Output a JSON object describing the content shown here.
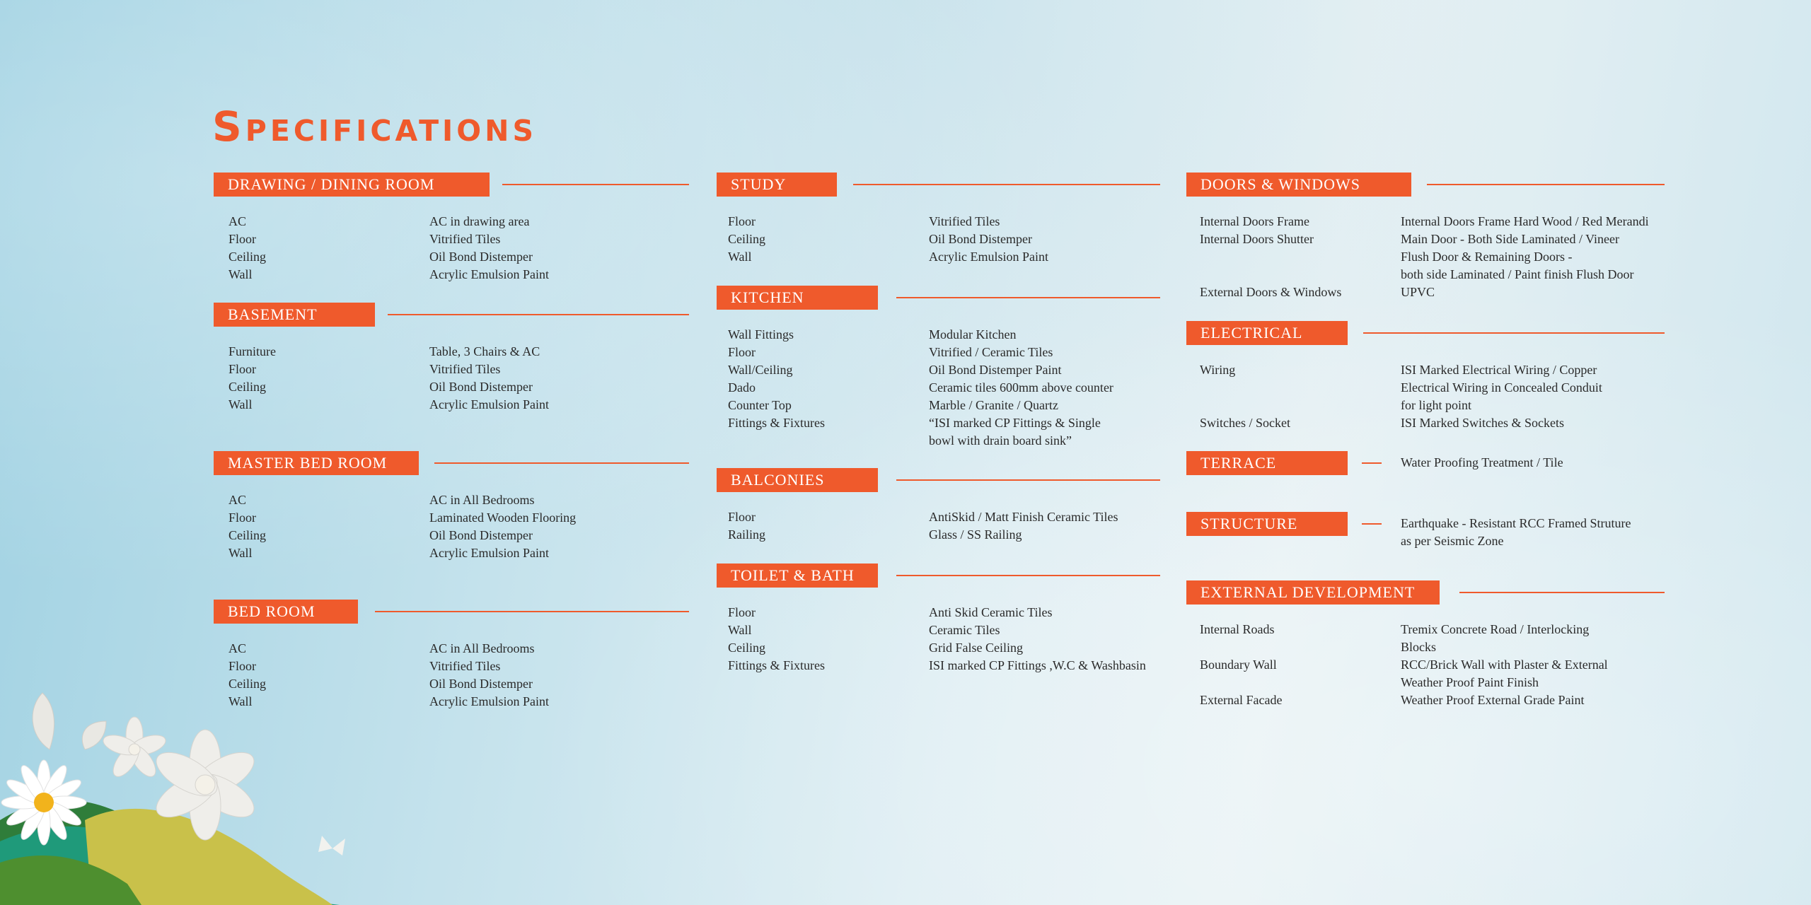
{
  "title": "Specifications",
  "sections": {
    "drawing": {
      "label": "DRAWING / DINING ROOM",
      "rows": [
        {
          "k": "AC",
          "v": "AC in drawing area"
        },
        {
          "k": "Floor",
          "v": "Vitrified Tiles"
        },
        {
          "k": "Ceiling",
          "v": "Oil Bond Distemper"
        },
        {
          "k": "Wall",
          "v": "Acrylic Emulsion Paint"
        }
      ]
    },
    "basement": {
      "label": "BASEMENT",
      "rows": [
        {
          "k": "Furniture",
          "v": "Table, 3 Chairs & AC"
        },
        {
          "k": "Floor",
          "v": "Vitrified Tiles"
        },
        {
          "k": "Ceiling",
          "v": "Oil Bond Distemper"
        },
        {
          "k": "Wall",
          "v": "Acrylic Emulsion Paint"
        }
      ]
    },
    "master": {
      "label": "MASTER BED ROOM",
      "rows": [
        {
          "k": "AC",
          "v": "AC in All Bedrooms"
        },
        {
          "k": "Floor",
          "v": "Laminated Wooden Flooring"
        },
        {
          "k": "Ceiling",
          "v": "Oil Bond Distemper"
        },
        {
          "k": "Wall",
          "v": "Acrylic Emulsion Paint"
        }
      ]
    },
    "bedroom": {
      "label": "BED ROOM",
      "rows": [
        {
          "k": "AC",
          "v": "AC in All Bedrooms"
        },
        {
          "k": "Floor",
          "v": "Vitrified Tiles"
        },
        {
          "k": "Ceiling",
          "v": "Oil Bond Distemper"
        },
        {
          "k": "Wall",
          "v": "Acrylic Emulsion Paint"
        }
      ]
    },
    "study": {
      "label": "STUDY",
      "rows": [
        {
          "k": "Floor",
          "v": "Vitrified Tiles"
        },
        {
          "k": "Ceiling",
          "v": "Oil Bond Distemper"
        },
        {
          "k": "Wall",
          "v": "Acrylic Emulsion Paint"
        }
      ]
    },
    "kitchen": {
      "label": "KITCHEN",
      "rows": [
        {
          "k": "Wall Fittings",
          "v": "Modular Kitchen"
        },
        {
          "k": "Floor",
          "v": "Vitrified / Ceramic Tiles"
        },
        {
          "k": "Wall/Ceiling",
          "v": "Oil Bond Distemper Paint"
        },
        {
          "k": "Dado",
          "v": "Ceramic tiles 600mm above counter"
        },
        {
          "k": "Counter Top",
          "v": "Marble / Granite / Quartz"
        },
        {
          "k": "Fittings & Fixtures",
          "v": "“ISI marked CP Fittings & Single"
        },
        {
          "k": "",
          "v": "bowl with drain board sink”"
        }
      ]
    },
    "balconies": {
      "label": "BALCONIES",
      "rows": [
        {
          "k": "Floor",
          "v": "AntiSkid / Matt Finish Ceramic Tiles"
        },
        {
          "k": "Railing",
          "v": "Glass / SS Railing"
        }
      ]
    },
    "toilet": {
      "label": "TOILET & BATH",
      "rows": [
        {
          "k": "Floor",
          "v": "Anti Skid Ceramic Tiles"
        },
        {
          "k": "Wall",
          "v": "Ceramic Tiles"
        },
        {
          "k": "Ceiling",
          "v": "Grid False Ceiling"
        },
        {
          "k": "Fittings & Fixtures",
          "v": "ISI marked CP Fittings ,W.C & Washbasin"
        }
      ]
    },
    "doors": {
      "label": "DOORS & WINDOWS",
      "rows": [
        {
          "k": "Internal Doors Frame",
          "v": "Internal Doors Frame Hard Wood / Red Merandi"
        },
        {
          "k": "Internal Doors Shutter",
          "v": "Main Door - Both Side Laminated / Vineer"
        },
        {
          "k": "",
          "v": "Flush Door & Remaining Doors -"
        },
        {
          "k": "",
          "v": "both side Laminated / Paint finish Flush Door"
        },
        {
          "k": "External Doors & Windows",
          "v": "UPVC"
        }
      ]
    },
    "electrical": {
      "label": "ELECTRICAL",
      "rows": [
        {
          "k": "Wiring",
          "v": "ISI Marked Electrical Wiring / Copper"
        },
        {
          "k": "",
          "v": "Electrical Wiring in Concealed Conduit"
        },
        {
          "k": "",
          "v": "for light point"
        },
        {
          "k": "Switches / Socket",
          "v": "ISI Marked Switches & Sockets"
        }
      ]
    },
    "terrace": {
      "label": "TERRACE",
      "lines": [
        "Water Proofing Treatment / Tile"
      ]
    },
    "structure": {
      "label": "STRUCTURE",
      "lines": [
        "Earthquake - Resistant RCC Framed Struture",
        "as per Seismic Zone"
      ]
    },
    "external": {
      "label": "EXTERNAL DEVELOPMENT",
      "rows": [
        {
          "k": "Internal Roads",
          "v": "Tremix Concrete Road / Interlocking"
        },
        {
          "k": "",
          "v": "Blocks"
        },
        {
          "k": "Boundary Wall",
          "v": "RCC/Brick Wall with Plaster & External"
        },
        {
          "k": "",
          "v": "Weather Proof Paint Finish"
        },
        {
          "k": "External Facade",
          "v": "Weather Proof External Grade Paint"
        }
      ]
    }
  },
  "colors": {
    "accent": "#ef5a2c",
    "text": "#2a2a2a"
  },
  "decoration": "paper-flowers-illustration"
}
